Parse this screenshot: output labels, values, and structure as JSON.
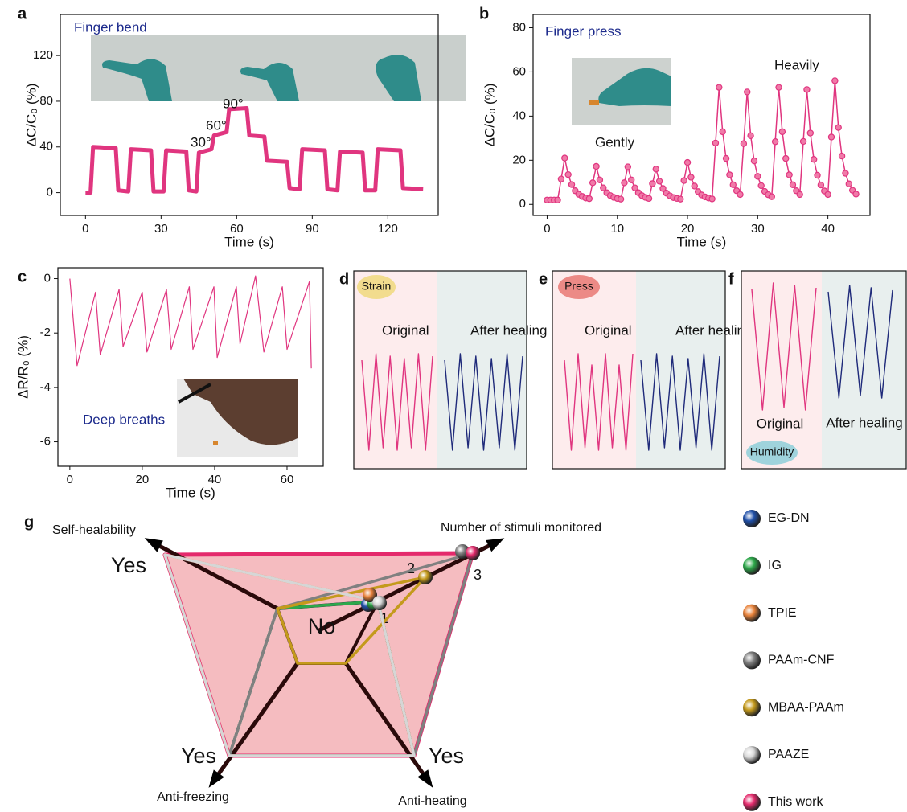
{
  "chart_data": [
    {
      "type": "line",
      "label": "a",
      "title": "Finger bend",
      "x_label": "Time (s)",
      "y_label": "ΔC/C₀ (%)",
      "color": "#e0357f",
      "annotations": [
        "30°",
        "60°",
        "90°"
      ],
      "x": [
        0,
        2,
        3,
        12,
        13,
        17,
        18,
        26,
        27,
        31,
        32,
        40,
        41,
        44,
        45,
        50,
        51,
        56,
        57,
        64,
        65,
        71,
        72,
        80,
        81,
        85,
        86,
        95,
        96,
        100,
        101,
        110,
        111,
        115,
        116,
        125,
        126,
        134
      ],
      "values": [
        0,
        0,
        40,
        39,
        2,
        1,
        38,
        37,
        1,
        1,
        37,
        36,
        2,
        1,
        35,
        38,
        50,
        53,
        73,
        74,
        50,
        49,
        28,
        27,
        4,
        3,
        38,
        37,
        3,
        2,
        36,
        35,
        2,
        2,
        38,
        37,
        4,
        3
      ],
      "xlim": [
        -10,
        140
      ],
      "ylim": [
        -20,
        156
      ],
      "xticks": [
        0,
        30,
        60,
        90,
        120
      ],
      "yticks": [
        0,
        40,
        80,
        120
      ]
    },
    {
      "type": "line",
      "label": "b",
      "title": "Finger press",
      "x_label": "Time (s)",
      "y_label": "ΔC/C₀ (%)",
      "color": "#e0357f",
      "marker": true,
      "annotations": [
        "Gently",
        "Heavily"
      ],
      "x": [
        0,
        0.5,
        1,
        1.5,
        2,
        2.5,
        3,
        3.5,
        4,
        4.5,
        5,
        5.5,
        6,
        6.5,
        7,
        7.5,
        8,
        8.5,
        9,
        9.5,
        10,
        10.5,
        11,
        11.5,
        12,
        12.5,
        13,
        13.5,
        14,
        14.5,
        15,
        15.5,
        16,
        16.5,
        17,
        17.5,
        18,
        18.5,
        19,
        19.5,
        20,
        20.5,
        21,
        21.5,
        22,
        22.5,
        23,
        23.5,
        24,
        24.5,
        25,
        25.5,
        26,
        26.5,
        27,
        27.5,
        28,
        28.5,
        29,
        29.5,
        30,
        30.5,
        31,
        31.5,
        32,
        32.5,
        33,
        33.5,
        34,
        34.5,
        35,
        35.5,
        36,
        36.5,
        37,
        37.5,
        38,
        38.5,
        39,
        39.5,
        40,
        40.5,
        41,
        41.5,
        42,
        42.5,
        43,
        43.5,
        44
      ],
      "values": [
        2,
        2,
        2,
        2,
        11.5,
        21,
        13.5,
        9,
        6.2,
        4.6,
        3.6,
        2.9,
        2.6,
        9.8,
        17.2,
        11.1,
        7.5,
        5.3,
        4,
        3.2,
        2.7,
        2.4,
        9.8,
        17,
        11.1,
        7.5,
        5.3,
        4,
        3.2,
        2.7,
        9.4,
        16,
        10.5,
        7.2,
        5.1,
        3.9,
        3.1,
        2.7,
        2.4,
        10.8,
        19,
        12.3,
        8.3,
        5.8,
        4.3,
        3.4,
        2.9,
        2.5,
        27.8,
        53,
        32.9,
        20.8,
        13.4,
        8.9,
        6.2,
        4.5,
        27.5,
        50.9,
        31.1,
        19.7,
        12.7,
        8.5,
        5.9,
        4.4,
        3.5,
        28.4,
        53,
        32.9,
        20.8,
        13.4,
        8.9,
        6.2,
        4.5,
        28.5,
        52,
        32.3,
        20.4,
        13.2,
        8.8,
        6.1,
        4.5,
        30.5,
        56,
        34.8,
        21.9,
        14.1,
        9.3,
        6.4,
        4.7
      ],
      "xlim": [
        -2,
        46
      ],
      "ylim": [
        -5,
        86
      ],
      "xticks": [
        0,
        10,
        20,
        30,
        40
      ],
      "yticks": [
        0,
        20,
        40,
        60,
        80
      ]
    },
    {
      "type": "line",
      "label": "c",
      "title": "Deep breaths",
      "x_label": "Time (s)",
      "y_label": "ΔR/R₀ (%)",
      "color": "#e0357f",
      "x": [
        0,
        2,
        7.1,
        8.4,
        13.6,
        14.7,
        20,
        21.3,
        26.7,
        28,
        33,
        34,
        39.8,
        40.7,
        46,
        47,
        51.3,
        53.6,
        58.7,
        60,
        66.2,
        66.7
      ],
      "values": [
        0,
        -3.2,
        -0.5,
        -2.8,
        -0.4,
        -2.5,
        -0.5,
        -2.7,
        -0.4,
        -2.6,
        -0.3,
        -2.6,
        -0.3,
        -2.9,
        -0.3,
        -2.4,
        0.1,
        -2.7,
        -0.3,
        -2.6,
        -0.1,
        -3.3
      ],
      "xlim": [
        -3.3,
        70
      ],
      "ylim": [
        -6.9,
        0.4
      ],
      "xticks": [
        0,
        20,
        40,
        60
      ],
      "yticks": [
        0,
        -2,
        -4,
        -6
      ]
    },
    {
      "type": "waveform",
      "label": "d",
      "stimulus": "Strain",
      "stimulus_color": "#f2dc8e",
      "series": [
        {
          "name": "Original",
          "color": "#e0357f"
        },
        {
          "name": "After healing",
          "color": "#1f2a7a"
        }
      ]
    },
    {
      "type": "waveform",
      "label": "e",
      "stimulus": "Press",
      "stimulus_color": "#ec8a86",
      "series": [
        {
          "name": "Original",
          "color": "#e0357f"
        },
        {
          "name": "After healing",
          "color": "#1f2a7a"
        }
      ]
    },
    {
      "type": "waveform",
      "label": "f",
      "stimulus": "Humidity",
      "stimulus_color": "#9fd3dc",
      "series": [
        {
          "name": "Original",
          "color": "#e0357f"
        },
        {
          "name": "After healing",
          "color": "#1f2a7a"
        }
      ]
    },
    {
      "type": "radar",
      "label": "g",
      "center_label": "No",
      "axes": [
        {
          "name": "Self-healability",
          "lim": [
            0,
            1
          ],
          "ticks": [
            {
              "value": 1,
              "label": "Yes"
            }
          ]
        },
        {
          "name": "Number of stimuli monitored",
          "lim": [
            1,
            3
          ],
          "ticks": [
            1,
            2,
            3
          ]
        },
        {
          "name": "Anti-heating",
          "lim": [
            0,
            1
          ],
          "ticks": [
            {
              "value": 1,
              "label": "Yes"
            }
          ]
        },
        {
          "name": "Anti-freezing",
          "lim": [
            0,
            1
          ],
          "ticks": [
            {
              "value": 1,
              "label": "Yes"
            }
          ]
        }
      ],
      "series": [
        {
          "name": "EG-DN",
          "color": "#1f4fa8",
          "values": [
            0,
            1,
            1,
            1
          ]
        },
        {
          "name": "IG",
          "color": "#2da84a",
          "values": [
            0,
            1,
            1,
            1
          ]
        },
        {
          "name": "TPIE",
          "color": "#e8823a",
          "values": [
            1,
            1,
            1,
            1
          ]
        },
        {
          "name": "PAAm-CNF",
          "color": "#808080",
          "values": [
            0,
            3,
            1,
            1
          ]
        },
        {
          "name": "MBAA-PAAm",
          "color": "#c49a1c",
          "values": [
            0,
            2,
            0,
            0
          ]
        },
        {
          "name": "PAAZE",
          "color": "#d6d6d6",
          "values": [
            1,
            1,
            1,
            1
          ]
        },
        {
          "name": "This work",
          "color": "#e42a6c",
          "fill": "#f5bcc0",
          "values": [
            1,
            3,
            1,
            1
          ]
        }
      ]
    }
  ]
}
